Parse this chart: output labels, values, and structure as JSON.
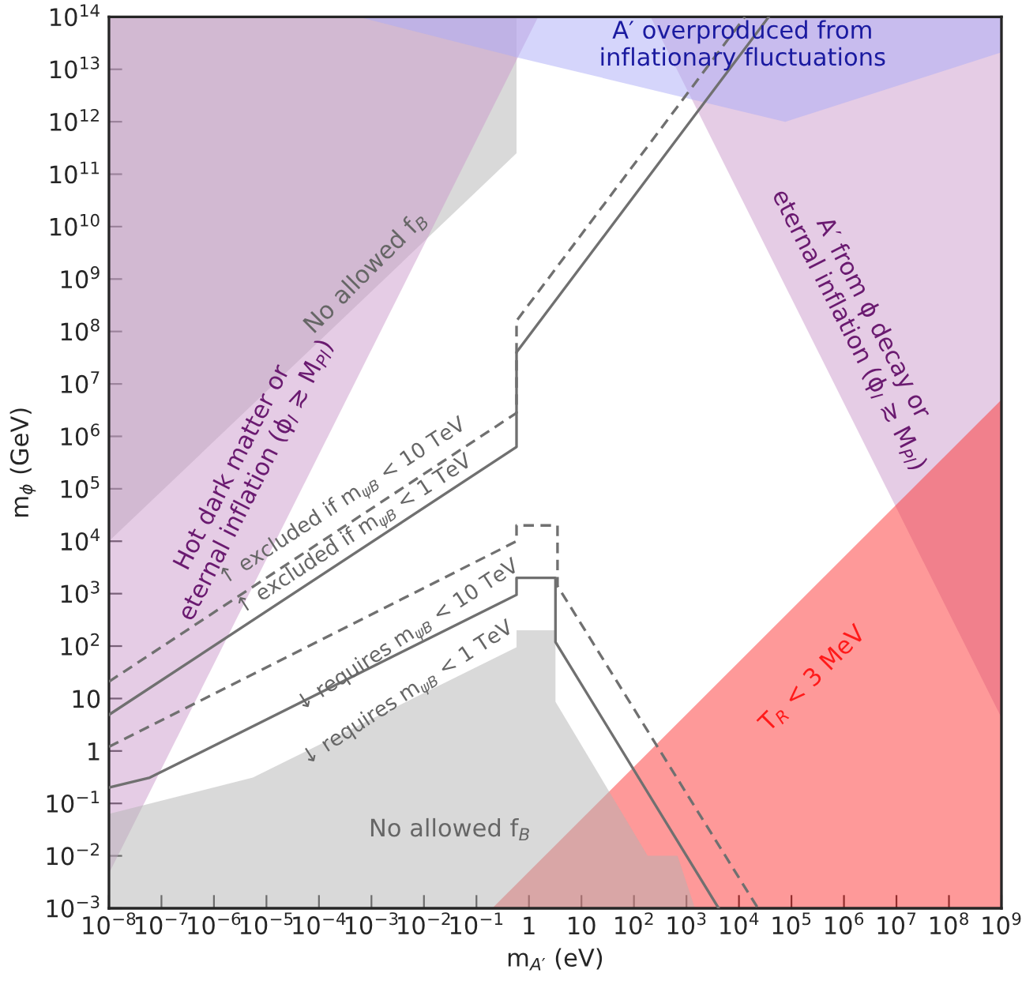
{
  "chart_data": {
    "type": "area",
    "xlabel": "m$_{A′}$ (eV)",
    "ylabel": "m$_{ϕ}$ (GeV)",
    "log": "xy",
    "grid": false,
    "legend": false,
    "xlim": [
      1e-08,
      1000000000.0
    ],
    "ylim": [
      0.001,
      100000000000000.0
    ],
    "xticks": [
      {
        "value": 1e-08,
        "label": "10$^{−8}$"
      },
      {
        "value": 1e-07,
        "label": "10$^{−7}$"
      },
      {
        "value": 1e-06,
        "label": "10$^{−6}$"
      },
      {
        "value": 1e-05,
        "label": "10$^{−5}$"
      },
      {
        "value": 0.0001,
        "label": "10$^{−4}$"
      },
      {
        "value": 0.001,
        "label": "10$^{−3}$"
      },
      {
        "value": 0.01,
        "label": "10$^{−2}$"
      },
      {
        "value": 0.1,
        "label": "10$^{−1}$"
      },
      1,
      10,
      {
        "value": 100,
        "label": "10$^{2}$"
      },
      {
        "value": 1000.0,
        "label": "10$^{3}$"
      },
      {
        "value": 10000.0,
        "label": "10$^{4}$"
      },
      {
        "value": 100000.0,
        "label": "10$^{5}$"
      },
      {
        "value": 1000000.0,
        "label": "10$^{6}$"
      },
      {
        "value": 10000000.0,
        "label": "10$^{7}$"
      },
      {
        "value": 100000000.0,
        "label": "10$^{8}$"
      },
      {
        "value": 1000000000.0,
        "label": "10$^{9}$"
      }
    ],
    "yticks": [
      {
        "value": 0.001,
        "label": "10$^{−3}$"
      },
      {
        "value": 0.01,
        "label": "10$^{−2}$"
      },
      {
        "value": 0.1,
        "label": "10$^{−1}$"
      },
      1,
      10,
      {
        "value": 100,
        "label": "10$^{2}$"
      },
      {
        "value": 1000.0,
        "label": "10$^{3}$"
      },
      {
        "value": 10000.0,
        "label": "10$^{4}$"
      },
      {
        "value": 100000.0,
        "label": "10$^{5}$"
      },
      {
        "value": 1000000.0,
        "label": "10$^{6}$"
      },
      {
        "value": 10000000.0,
        "label": "10$^{7}$"
      },
      {
        "value": 100000000.0,
        "label": "10$^{8}$"
      },
      {
        "value": 1000000000.0,
        "label": "10$^{9}$"
      },
      {
        "value": 10000000000.0,
        "label": "10$^{10}$"
      },
      {
        "value": 100000000000.0,
        "label": "10$^{11}$"
      },
      {
        "value": 1000000000000.0,
        "label": "10$^{12}$"
      },
      {
        "value": 10000000000000.0,
        "label": "10$^{13}$"
      },
      {
        "value": 100000000000000.0,
        "label": "10$^{14}$"
      }
    ],
    "series": [
      {
        "type": "area",
        "color": "#b3b3b3",
        "x": [
          1e-08,
          0.58,
          0.58,
          1e-08
        ],
        "values": [
          10000.0,
          250000000000.0,
          100000000000000.0,
          100000000000000.0
        ]
      },
      {
        "type": "area",
        "color": "#cb99cb",
        "x": [
          1e-08,
          1.5,
          1e-08
        ],
        "values": [
          0.0046,
          100000000000000.0,
          100000000000000.0
        ]
      },
      {
        "type": "area",
        "color": "#cb99cb",
        "x": [
          207,
          1000000000.0,
          1000000000.0
        ],
        "values": [
          100000000000000.0,
          4.3,
          100000000000000.0
        ]
      },
      {
        "type": "area",
        "color": "#ababf7",
        "x": [
          0.00056,
          0.58,
          76000.0,
          1000000000.0,
          1000000000.0
        ],
        "values": [
          100000000000000.0,
          17000000000000.0,
          1000000000000.0,
          21000000000000.0,
          100000000000000.0
        ]
      },
      {
        "type": "area",
        "color": "#fd3333",
        "x": [
          0.2,
          1000000000.0,
          1000000000.0
        ],
        "values": [
          0.001,
          5000000.0,
          0.001
        ]
      },
      {
        "type": "area",
        "color": "#b3b3b3",
        "x": [
          1e-08,
          5.5e-06,
          0.58,
          0.58,
          3.2,
          3.2,
          182,
          676,
          1450,
          1e-08
        ],
        "values": [
          0.063,
          0.31,
          95,
          200,
          200,
          8.7,
          0.01,
          0.01,
          0.001,
          0.001
        ]
      },
      {
        "type": "line",
        "line_style": "solid",
        "color": "#707070",
        "x": [
          1e-08,
          0.58,
          0.58,
          37000.0
        ],
        "values": [
          4.9,
          630000.0,
          40000000.0,
          100000000000000.0
        ]
      },
      {
        "type": "line",
        "line_style": "dashed",
        "color": "#707070",
        "x": [
          1e-08,
          0.58,
          0.58,
          13000.0
        ],
        "values": [
          21,
          2800000.0,
          160000000.0,
          100000000000000.0
        ]
      },
      {
        "type": "line",
        "line_style": "dashed",
        "color": "#707070",
        "x": [
          1e-08,
          0.58,
          0.58,
          3.5,
          3.5,
          23000.0
        ],
        "values": [
          1.2,
          10000.0,
          20000.0,
          20000.0,
          1400,
          0.001
        ]
      },
      {
        "type": "line",
        "line_style": "solid",
        "color": "#707070",
        "x": [
          1e-08,
          6e-08,
          0.58,
          0.58,
          3.2,
          3.2,
          4100.0
        ],
        "values": [
          0.2,
          0.31,
          950,
          2000,
          2000,
          120,
          0.001
        ]
      }
    ],
    "annotations": [
      "A′ overproduced from\ninflationary fluctuations",
      "No allowed f$_{B}$",
      "Hot dark matter or\neternal inflation (ϕ$_{I}$ ≳ M$_{Pl}$)",
      "A′ from ϕ decay or\neternal inflation (ϕ$_{I}$ ≳ M$_{Pl}$)",
      "T$_{R}$ < 3 MeV",
      "No allowed f$_{B}$",
      "↑ excluded if m$_{ψB}$ < 10 TeV",
      "↑ excluded if m$_{ψB}$ < 1 TeV",
      "↓ requires m$_{ψB}$ < 10 TeV",
      "↓ requires m$_{ψB}$ < 1 TeV"
    ]
  }
}
